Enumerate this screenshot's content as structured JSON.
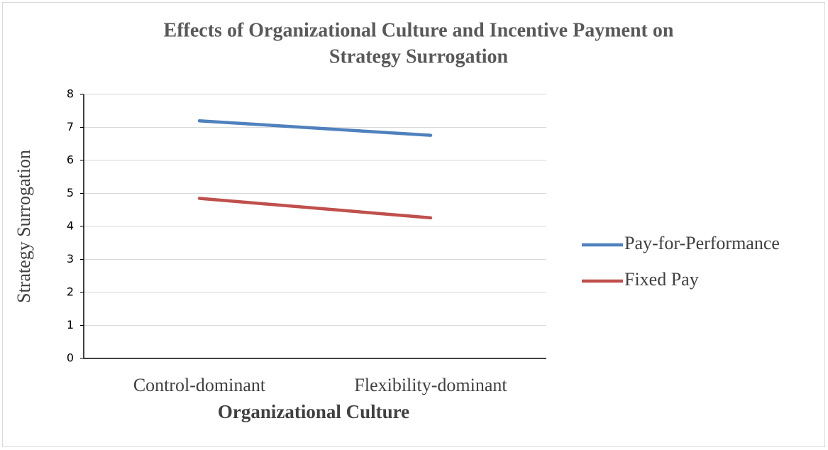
{
  "chart_data": {
    "type": "line",
    "title": [
      "Effects of Organizational Culture and Incentive Payment on",
      "Strategy Surrogation"
    ],
    "x_label": "Organizational Culture",
    "y_label": "Strategy Surrogation",
    "categories": [
      "Control-dominant",
      "Flexibility-dominant"
    ],
    "series": [
      {
        "name": "Pay-for-Performance",
        "color": "#4f81bd",
        "values": [
          7.2,
          6.76
        ]
      },
      {
        "name": "Fixed Pay",
        "color": "#c0504d",
        "values": [
          4.85,
          4.26
        ]
      }
    ],
    "ylim": [
      0,
      8
    ],
    "yticks": [
      0,
      1,
      2,
      3,
      4,
      5,
      6,
      7,
      8
    ],
    "grid": true,
    "legend": "right"
  }
}
